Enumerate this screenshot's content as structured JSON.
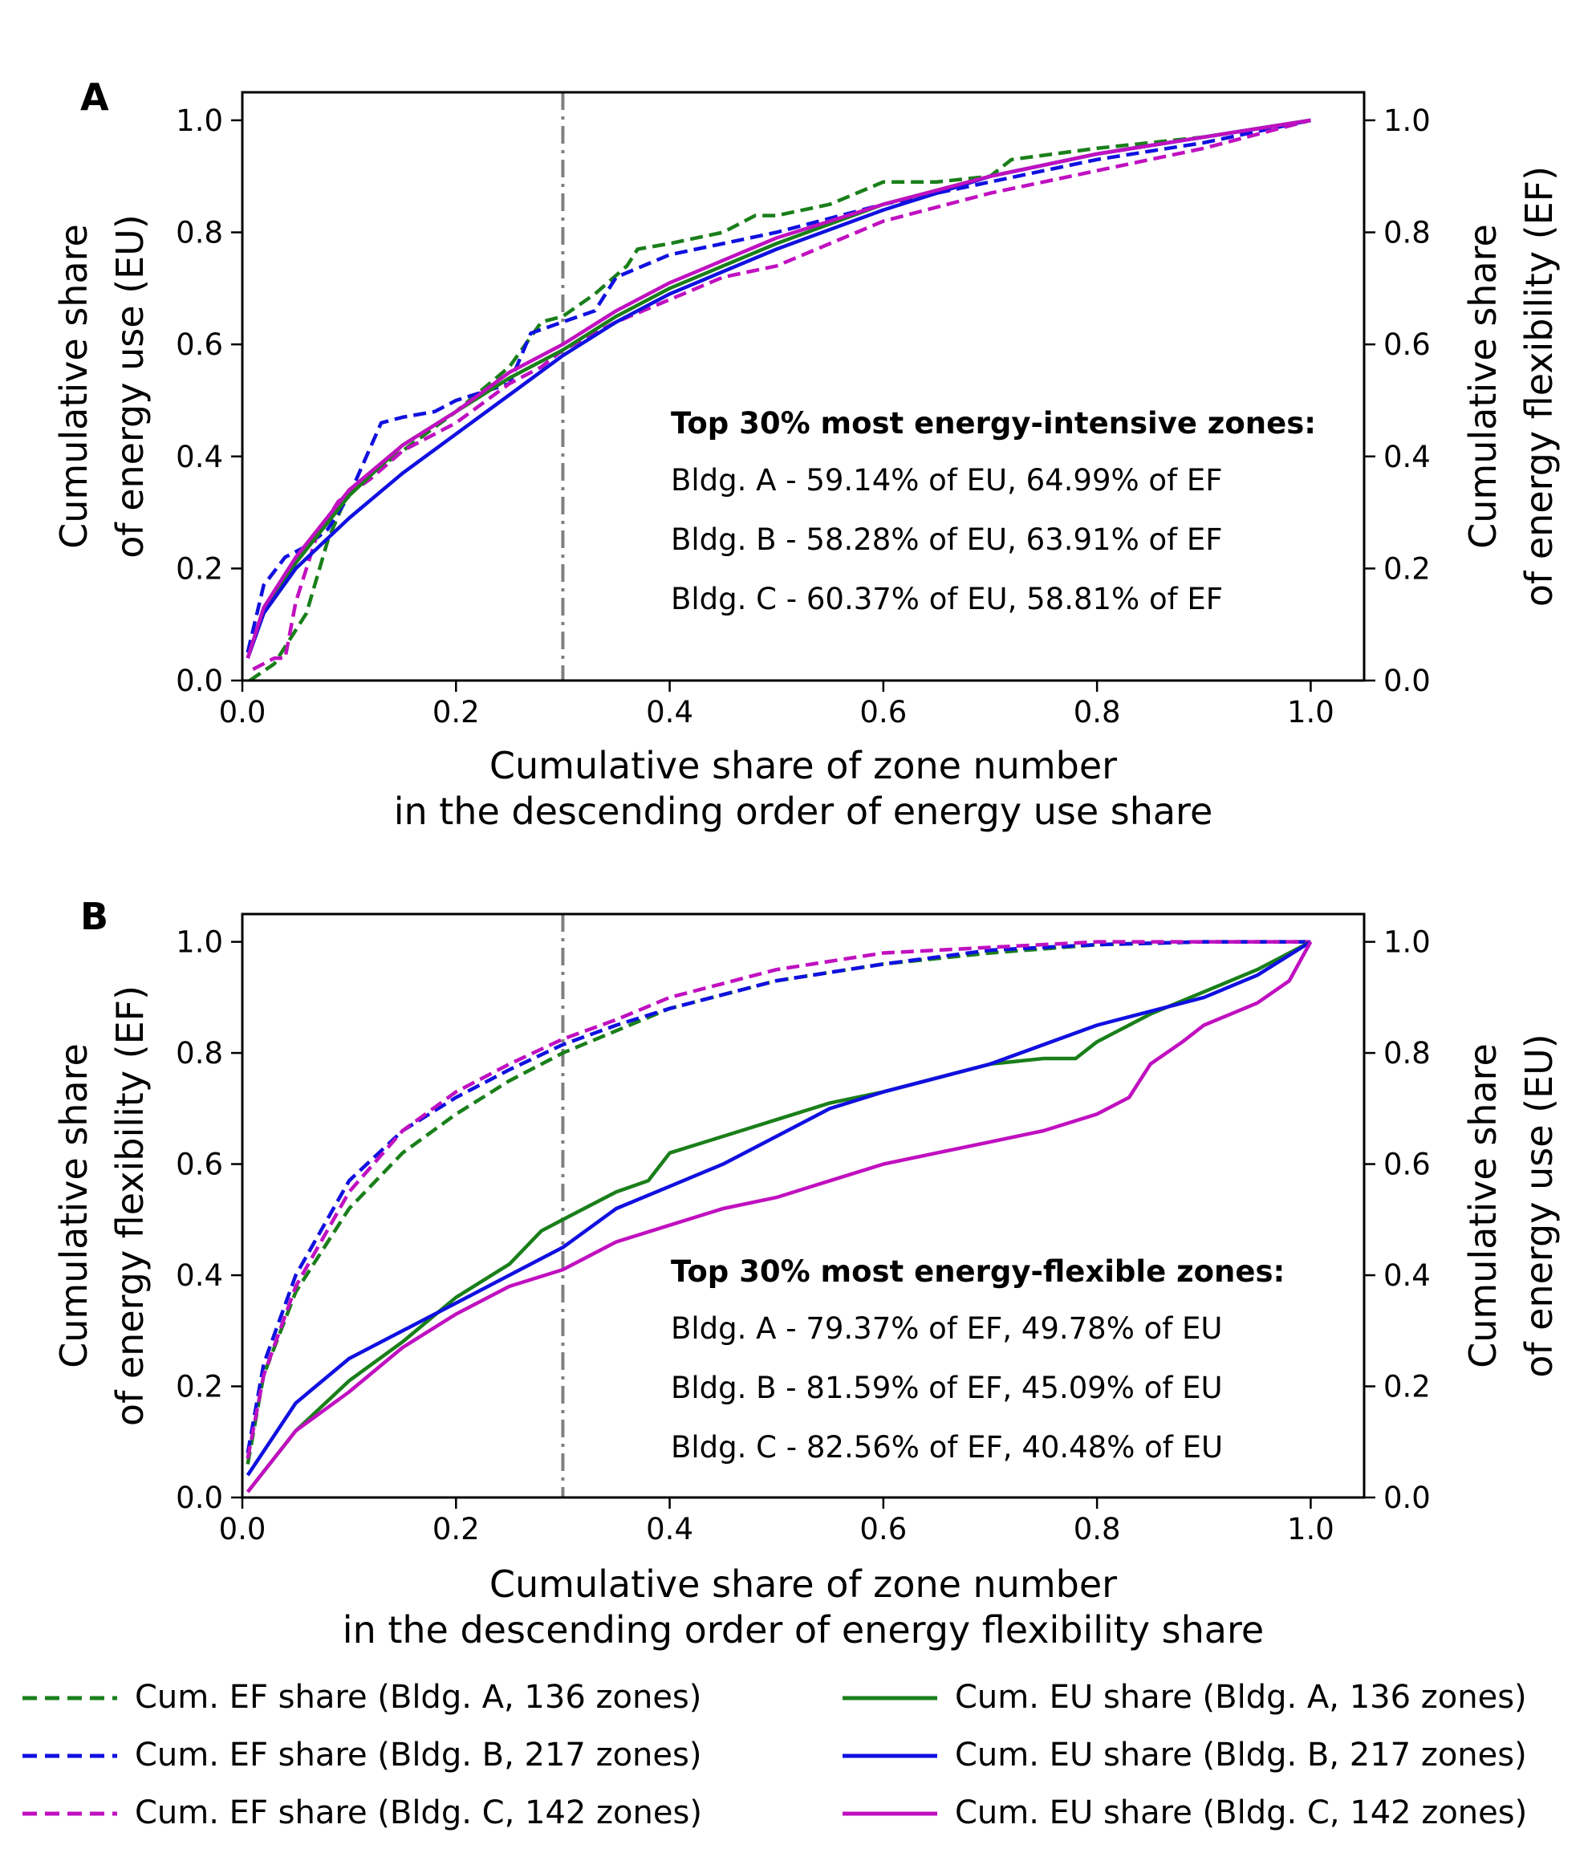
{
  "chart_data": [
    {
      "panel": "A",
      "type": "line",
      "xlabel": "Cumulative share of zone number",
      "xlabel2": "in the descending order of energy use share",
      "ylabel_left": "Cumulative share",
      "ylabel_left2": "of energy use (EU)",
      "ylabel_right": "Cumulative share",
      "ylabel_right2": "of energy flexibility (EF)",
      "xlim": [
        0.0,
        1.05
      ],
      "ylim": [
        0.0,
        1.05
      ],
      "xticks": [
        "0.0",
        "0.2",
        "0.4",
        "0.6",
        "0.8",
        "1.0"
      ],
      "yticks": [
        "0.0",
        "0.2",
        "0.4",
        "0.6",
        "0.8",
        "1.0"
      ],
      "vline_x": 0.3,
      "annotation_title": "Top 30% most energy-intensive zones:",
      "annotation_lines": [
        "Bldg. A -  59.14% of EU, 64.99% of EF",
        "Bldg. B - 58.28% of EU, 63.91% of EF",
        "Bldg. C - 60.37% of EU, 58.81% of EF"
      ],
      "series": [
        {
          "name": "Cum. EF share (Bldg. A, 136 zones)",
          "color": "#1a7f1a",
          "dash": true,
          "x": [
            0.007,
            0.03,
            0.06,
            0.08,
            0.1,
            0.15,
            0.2,
            0.25,
            0.28,
            0.3,
            0.33,
            0.36,
            0.37,
            0.4,
            0.45,
            0.48,
            0.5,
            0.55,
            0.6,
            0.65,
            0.7,
            0.72,
            0.8,
            0.9,
            1.0
          ],
          "y": [
            0.0,
            0.03,
            0.12,
            0.25,
            0.34,
            0.41,
            0.48,
            0.56,
            0.64,
            0.65,
            0.69,
            0.74,
            0.77,
            0.78,
            0.8,
            0.83,
            0.83,
            0.85,
            0.89,
            0.89,
            0.9,
            0.93,
            0.95,
            0.97,
            1.0
          ]
        },
        {
          "name": "Cum. EF share (Bldg. B, 217 zones)",
          "color": "#1010e0",
          "dash": true,
          "x": [
            0.005,
            0.02,
            0.04,
            0.06,
            0.08,
            0.1,
            0.13,
            0.15,
            0.18,
            0.2,
            0.25,
            0.27,
            0.3,
            0.33,
            0.35,
            0.4,
            0.45,
            0.5,
            0.6,
            0.7,
            0.8,
            0.9,
            1.0
          ],
          "y": [
            0.05,
            0.17,
            0.22,
            0.24,
            0.27,
            0.33,
            0.46,
            0.47,
            0.48,
            0.5,
            0.53,
            0.62,
            0.64,
            0.66,
            0.72,
            0.76,
            0.78,
            0.8,
            0.85,
            0.89,
            0.93,
            0.96,
            1.0
          ]
        },
        {
          "name": "Cum. EF share (Bldg. C, 142 zones)",
          "color": "#c010c0",
          "dash": true,
          "x": [
            0.01,
            0.03,
            0.04,
            0.05,
            0.06,
            0.07,
            0.09,
            0.12,
            0.15,
            0.2,
            0.25,
            0.28,
            0.3,
            0.35,
            0.4,
            0.45,
            0.5,
            0.55,
            0.6,
            0.7,
            0.8,
            0.9,
            1.0
          ],
          "y": [
            0.02,
            0.04,
            0.04,
            0.14,
            0.2,
            0.26,
            0.32,
            0.36,
            0.41,
            0.46,
            0.53,
            0.56,
            0.59,
            0.64,
            0.68,
            0.72,
            0.74,
            0.78,
            0.82,
            0.87,
            0.91,
            0.95,
            1.0
          ]
        },
        {
          "name": "Cum. EU share (Bldg. A, 136 zones)",
          "color": "#1a7f1a",
          "dash": false,
          "x": [
            0.005,
            0.02,
            0.05,
            0.1,
            0.15,
            0.2,
            0.25,
            0.3,
            0.35,
            0.4,
            0.5,
            0.6,
            0.7,
            0.8,
            0.9,
            1.0
          ],
          "y": [
            0.04,
            0.12,
            0.21,
            0.33,
            0.42,
            0.48,
            0.54,
            0.59,
            0.65,
            0.7,
            0.78,
            0.85,
            0.9,
            0.94,
            0.97,
            1.0
          ]
        },
        {
          "name": "Cum. EU share (Bldg. B, 217 zones)",
          "color": "#1010e0",
          "dash": false,
          "x": [
            0.005,
            0.02,
            0.05,
            0.1,
            0.15,
            0.2,
            0.25,
            0.3,
            0.35,
            0.4,
            0.5,
            0.6,
            0.7,
            0.8,
            0.9,
            1.0
          ],
          "y": [
            0.04,
            0.12,
            0.2,
            0.29,
            0.37,
            0.44,
            0.51,
            0.58,
            0.64,
            0.69,
            0.77,
            0.84,
            0.9,
            0.94,
            0.97,
            1.0
          ]
        },
        {
          "name": "Cum. EU share (Bldg. C, 142 zones)",
          "color": "#c010c0",
          "dash": false,
          "x": [
            0.005,
            0.02,
            0.05,
            0.1,
            0.15,
            0.2,
            0.25,
            0.3,
            0.35,
            0.4,
            0.5,
            0.6,
            0.7,
            0.8,
            0.9,
            1.0
          ],
          "y": [
            0.04,
            0.13,
            0.22,
            0.34,
            0.42,
            0.48,
            0.55,
            0.6,
            0.66,
            0.71,
            0.79,
            0.85,
            0.9,
            0.94,
            0.97,
            1.0
          ]
        }
      ]
    },
    {
      "panel": "B",
      "type": "line",
      "xlabel": "Cumulative share of zone number",
      "xlabel2": "in the descending order of energy flexibility share",
      "ylabel_left": "Cumulative share",
      "ylabel_left2": "of energy flexibility (EF)",
      "ylabel_right": "Cumulative share",
      "ylabel_right2": "of energy use (EU)",
      "xlim": [
        0.0,
        1.05
      ],
      "ylim": [
        0.0,
        1.05
      ],
      "xticks": [
        "0.0",
        "0.2",
        "0.4",
        "0.6",
        "0.8",
        "1.0"
      ],
      "yticks": [
        "0.0",
        "0.2",
        "0.4",
        "0.6",
        "0.8",
        "1.0"
      ],
      "vline_x": 0.3,
      "annotation_title": "Top 30% most energy-flexible zones:",
      "annotation_lines": [
        "Bldg. A -  79.37% of EF, 49.78% of EU",
        "Bldg. B - 81.59% of EF, 45.09% of EU",
        "Bldg. C - 82.56% of EF, 40.48% of EU"
      ],
      "series": [
        {
          "name": "Cum. EF share (Bldg. A, 136 zones)",
          "color": "#1a7f1a",
          "dash": true,
          "x": [
            0.005,
            0.02,
            0.05,
            0.1,
            0.15,
            0.2,
            0.25,
            0.3,
            0.35,
            0.4,
            0.5,
            0.6,
            0.7,
            0.8,
            0.9,
            1.0
          ],
          "y": [
            0.06,
            0.22,
            0.37,
            0.52,
            0.62,
            0.69,
            0.75,
            0.8,
            0.84,
            0.88,
            0.93,
            0.96,
            0.98,
            0.995,
            1.0,
            1.0
          ]
        },
        {
          "name": "Cum. EF share (Bldg. B, 217 zones)",
          "color": "#1010e0",
          "dash": true,
          "x": [
            0.005,
            0.02,
            0.05,
            0.1,
            0.15,
            0.2,
            0.25,
            0.3,
            0.35,
            0.4,
            0.5,
            0.6,
            0.7,
            0.8,
            0.9,
            1.0
          ],
          "y": [
            0.08,
            0.24,
            0.4,
            0.57,
            0.66,
            0.72,
            0.77,
            0.815,
            0.85,
            0.88,
            0.93,
            0.96,
            0.985,
            0.995,
            1.0,
            1.0
          ]
        },
        {
          "name": "Cum. EF share (Bldg. C, 142 zones)",
          "color": "#c010c0",
          "dash": true,
          "x": [
            0.005,
            0.02,
            0.05,
            0.1,
            0.15,
            0.2,
            0.25,
            0.3,
            0.35,
            0.4,
            0.5,
            0.6,
            0.7,
            0.8,
            0.9,
            1.0
          ],
          "y": [
            0.07,
            0.22,
            0.38,
            0.55,
            0.66,
            0.73,
            0.78,
            0.825,
            0.86,
            0.9,
            0.95,
            0.98,
            0.99,
            1.0,
            1.0,
            1.0
          ]
        },
        {
          "name": "Cum. EU share (Bldg. A, 136 zones)",
          "color": "#1a7f1a",
          "dash": false,
          "x": [
            0.005,
            0.05,
            0.1,
            0.15,
            0.2,
            0.25,
            0.28,
            0.3,
            0.35,
            0.38,
            0.4,
            0.45,
            0.5,
            0.55,
            0.6,
            0.7,
            0.75,
            0.78,
            0.8,
            0.85,
            0.9,
            0.95,
            1.0
          ],
          "y": [
            0.01,
            0.12,
            0.21,
            0.28,
            0.36,
            0.42,
            0.48,
            0.5,
            0.55,
            0.57,
            0.62,
            0.65,
            0.68,
            0.71,
            0.73,
            0.78,
            0.79,
            0.79,
            0.82,
            0.87,
            0.91,
            0.95,
            1.0
          ]
        },
        {
          "name": "Cum. EU share (Bldg. B, 217 zones)",
          "color": "#1010e0",
          "dash": false,
          "x": [
            0.005,
            0.05,
            0.1,
            0.15,
            0.2,
            0.25,
            0.3,
            0.35,
            0.4,
            0.45,
            0.5,
            0.55,
            0.6,
            0.7,
            0.8,
            0.9,
            0.95,
            1.0
          ],
          "y": [
            0.04,
            0.17,
            0.25,
            0.3,
            0.35,
            0.4,
            0.45,
            0.52,
            0.56,
            0.6,
            0.65,
            0.7,
            0.73,
            0.78,
            0.85,
            0.9,
            0.94,
            1.0
          ]
        },
        {
          "name": "Cum. EU share (Bldg. C, 142 zones)",
          "color": "#c010c0",
          "dash": false,
          "x": [
            0.005,
            0.05,
            0.1,
            0.15,
            0.2,
            0.25,
            0.3,
            0.35,
            0.4,
            0.45,
            0.5,
            0.55,
            0.6,
            0.65,
            0.7,
            0.75,
            0.8,
            0.83,
            0.85,
            0.88,
            0.9,
            0.95,
            0.98,
            1.0
          ],
          "y": [
            0.01,
            0.12,
            0.19,
            0.27,
            0.33,
            0.38,
            0.41,
            0.46,
            0.49,
            0.52,
            0.54,
            0.57,
            0.6,
            0.62,
            0.64,
            0.66,
            0.69,
            0.72,
            0.78,
            0.82,
            0.85,
            0.89,
            0.93,
            1.0
          ]
        }
      ]
    }
  ],
  "legend": {
    "items": [
      {
        "label": "Cum. EF share (Bldg. A, 136 zones)",
        "color": "#1a7f1a",
        "dash": true
      },
      {
        "label": "Cum. EF share (Bldg. B, 217 zones)",
        "color": "#1010e0",
        "dash": true
      },
      {
        "label": "Cum. EF share (Bldg. C, 142 zones)",
        "color": "#c010c0",
        "dash": true
      },
      {
        "label": "Cum. EU share (Bldg. A, 136 zones)",
        "color": "#1a7f1a",
        "dash": false
      },
      {
        "label": "Cum. EU share (Bldg. B, 217 zones)",
        "color": "#1010e0",
        "dash": false
      },
      {
        "label": "Cum. EU share (Bldg. C, 142 zones)",
        "color": "#c010c0",
        "dash": false
      }
    ]
  }
}
